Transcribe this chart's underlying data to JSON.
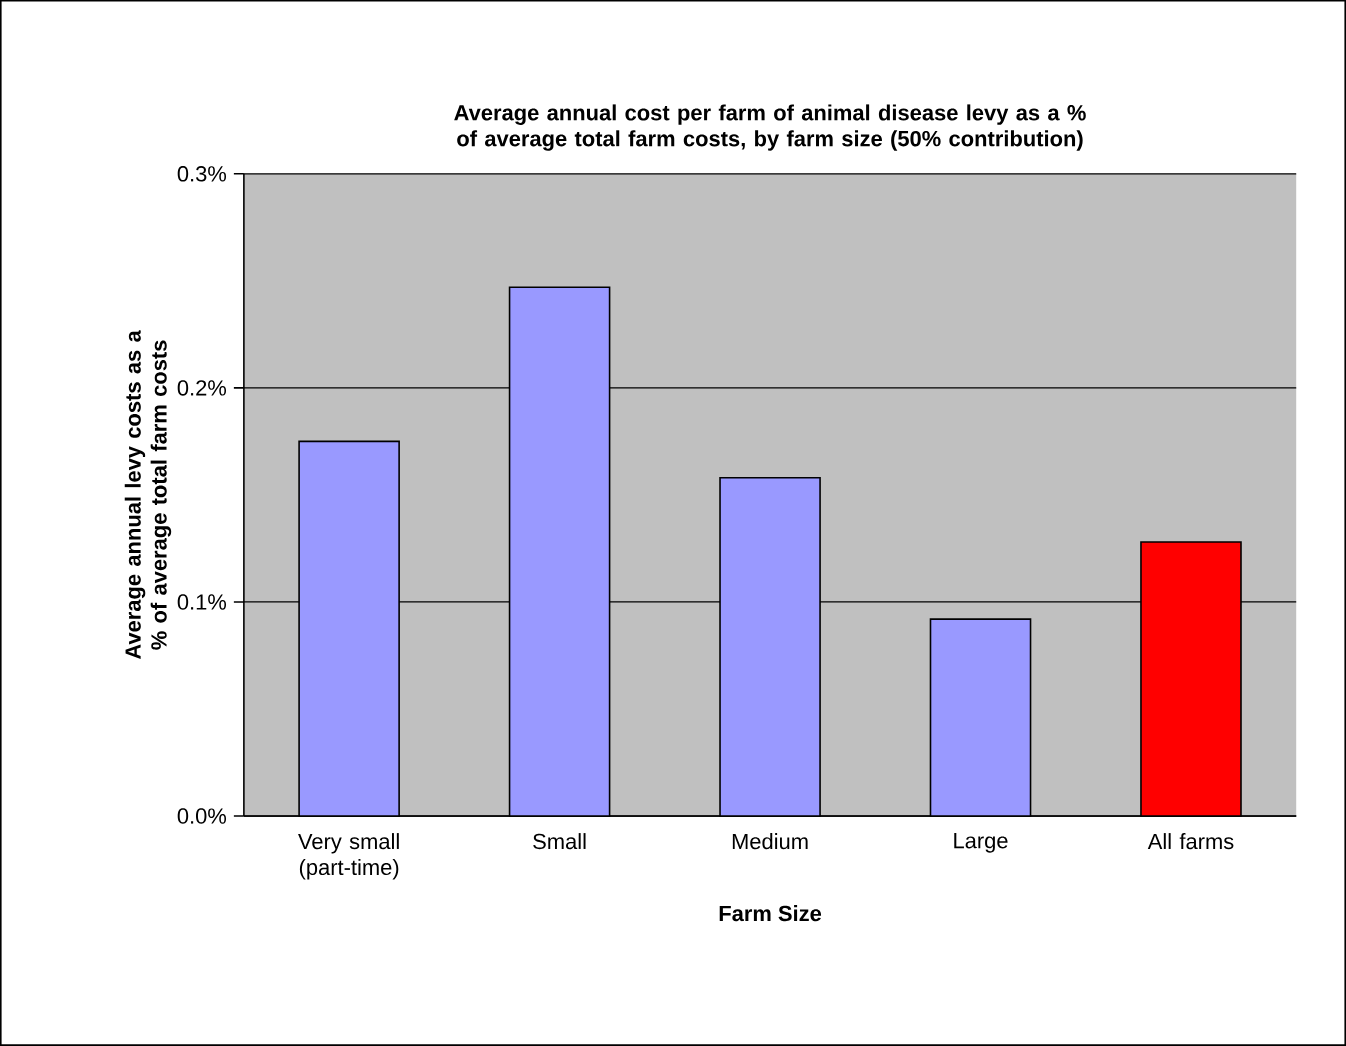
{
  "chart_data": {
    "type": "bar",
    "title": "Average annual cost per farm of animal disease levy as a % of average total farm costs, by farm size (50% contribution)",
    "xlabel": "Farm Size",
    "ylabel": "Average annual levy costs as a % of average total farm costs",
    "categories": [
      "Very small (part-time)",
      "Small",
      "Medium",
      "Large",
      "All farms"
    ],
    "values": [
      0.175,
      0.247,
      0.158,
      0.092,
      0.128
    ],
    "colors": [
      "#9999ff",
      "#9999ff",
      "#9999ff",
      "#9999ff",
      "#ff0000"
    ],
    "ylim": [
      0,
      0.3
    ],
    "yticks": [
      {
        "value": 0,
        "label": "0.0%"
      },
      {
        "value": 0.1,
        "label": "0.1%"
      },
      {
        "value": 0.2,
        "label": "0.2%"
      },
      {
        "value": 0.3,
        "label": "0.3%"
      }
    ],
    "grid": "y"
  }
}
